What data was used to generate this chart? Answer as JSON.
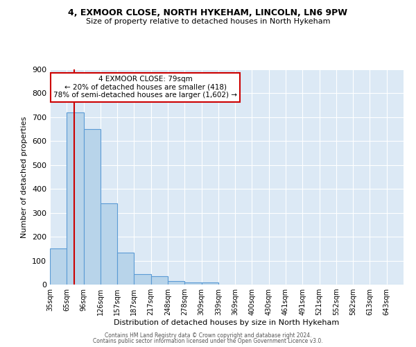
{
  "title1": "4, EXMOOR CLOSE, NORTH HYKEHAM, LINCOLN, LN6 9PW",
  "title2": "Size of property relative to detached houses in North Hykeham",
  "xlabel": "Distribution of detached houses by size in North Hykeham",
  "ylabel": "Number of detached properties",
  "bar_labels": [
    "35sqm",
    "65sqm",
    "96sqm",
    "126sqm",
    "157sqm",
    "187sqm",
    "217sqm",
    "248sqm",
    "278sqm",
    "309sqm",
    "339sqm",
    "369sqm",
    "400sqm",
    "430sqm",
    "461sqm",
    "491sqm",
    "521sqm",
    "552sqm",
    "582sqm",
    "613sqm",
    "643sqm"
  ],
  "bar_values": [
    150,
    720,
    650,
    340,
    135,
    45,
    35,
    15,
    10,
    10,
    0,
    0,
    0,
    0,
    0,
    0,
    0,
    0,
    0,
    0,
    0
  ],
  "bar_color": "#b8d4ea",
  "bar_edge_color": "#5b9bd5",
  "ylim": [
    0,
    900
  ],
  "yticks": [
    0,
    100,
    200,
    300,
    400,
    500,
    600,
    700,
    800,
    900
  ],
  "vline_color": "#cc0000",
  "annotation_text": "4 EXMOOR CLOSE: 79sqm\n← 20% of detached houses are smaller (418)\n78% of semi-detached houses are larger (1,602) →",
  "annotation_box_color": "#ffffff",
  "annotation_border_color": "#cc0000",
  "background_color": "#dce9f5",
  "footnote1": "Contains HM Land Registry data © Crown copyright and database right 2024.",
  "footnote2": "Contains public sector information licensed under the Open Government Licence v3.0."
}
